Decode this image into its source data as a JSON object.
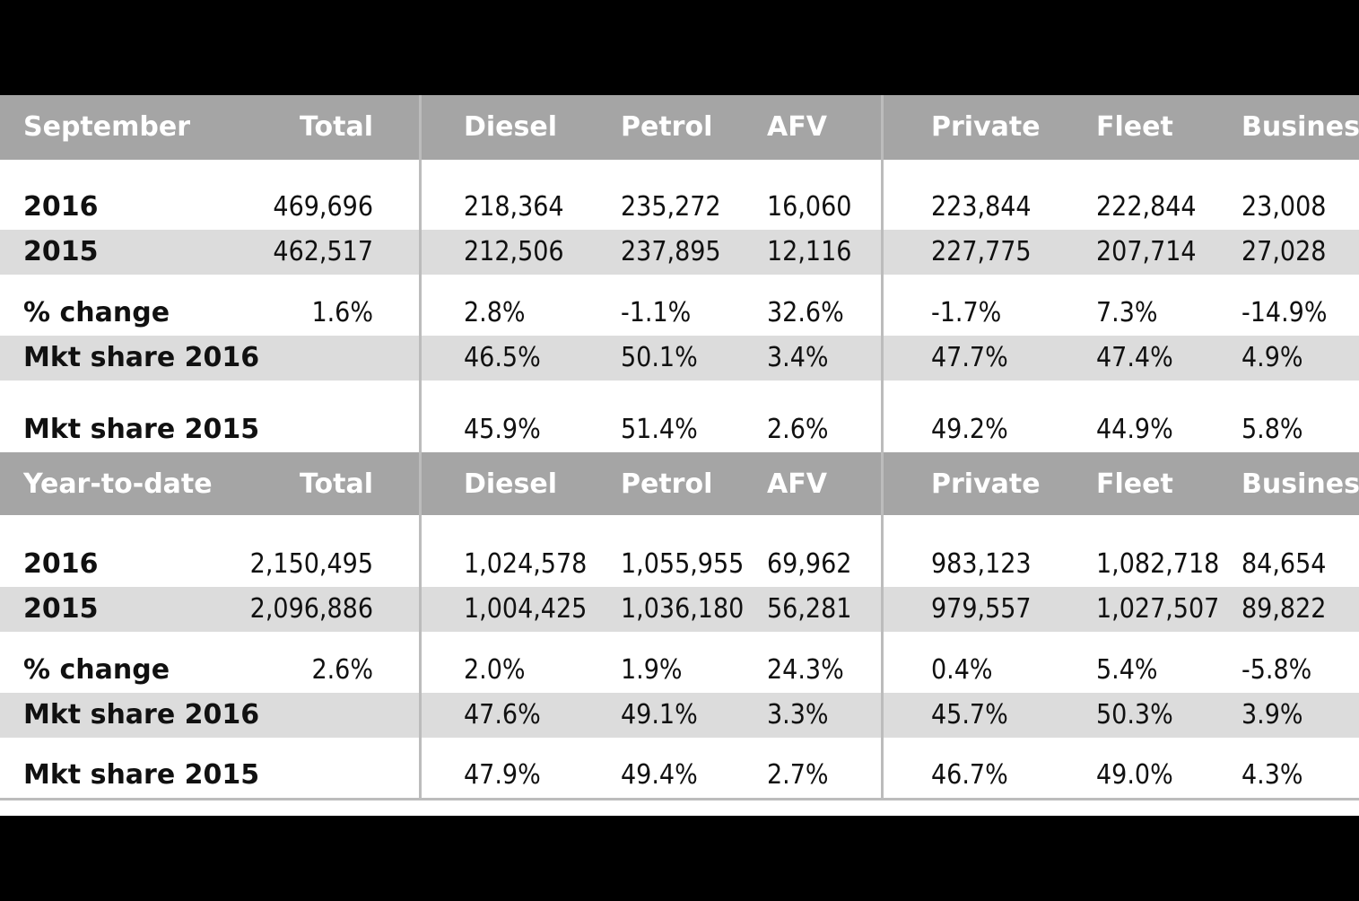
{
  "sections": [
    {
      "header": [
        "September",
        "Total",
        "Diesel",
        "Petrol",
        "AFV",
        "Private",
        "Fleet",
        "Business"
      ],
      "rows": [
        {
          "label": "2016",
          "values": [
            "469,696",
            "218,364",
            "235,272",
            "16,060",
            "223,844",
            "222,844",
            "23,008"
          ]
        },
        {
          "label": "2015",
          "values": [
            "462,517",
            "212,506",
            "237,895",
            "12,116",
            "227,775",
            "207,714",
            "27,028"
          ]
        },
        {
          "label": "% change",
          "values": [
            "1.6%",
            "2.8%",
            "-1.1%",
            "32.6%",
            "-1.7%",
            "7.3%",
            "-14.9%"
          ]
        },
        {
          "label": "Mkt share 2016",
          "values": [
            "",
            "46.5%",
            "50.1%",
            "3.4%",
            "47.7%",
            "47.4%",
            "4.9%"
          ]
        },
        {
          "label": "Mkt share 2015",
          "values": [
            "",
            "45.9%",
            "51.4%",
            "2.6%",
            "49.2%",
            "44.9%",
            "5.8%"
          ]
        }
      ]
    },
    {
      "header": [
        "Year-to-date",
        "Total",
        "Diesel",
        "Petrol",
        "AFV",
        "Private",
        "Fleet",
        "Business"
      ],
      "rows": [
        {
          "label": "2016",
          "values": [
            "2,150,495",
            "1,024,578",
            "1,055,955",
            "69,962",
            "983,123",
            "1,082,718",
            "84,654"
          ]
        },
        {
          "label": "2015",
          "values": [
            "2,096,886",
            "1,004,425",
            "1,036,180",
            "56,281",
            "979,557",
            "1,027,507",
            "89,822"
          ]
        },
        {
          "label": "% change",
          "values": [
            "2.6%",
            "2.0%",
            "1.9%",
            "24.3%",
            "0.4%",
            "5.4%",
            "-5.8%"
          ]
        },
        {
          "label": "Mkt share 2016",
          "values": [
            "",
            "47.6%",
            "49.1%",
            "3.3%",
            "45.7%",
            "50.3%",
            "3.9%"
          ]
        },
        {
          "label": "Mkt share 2015",
          "values": [
            "",
            "47.9%",
            "49.4%",
            "2.7%",
            "46.7%",
            "49.0%",
            "4.3%"
          ]
        }
      ]
    }
  ]
}
